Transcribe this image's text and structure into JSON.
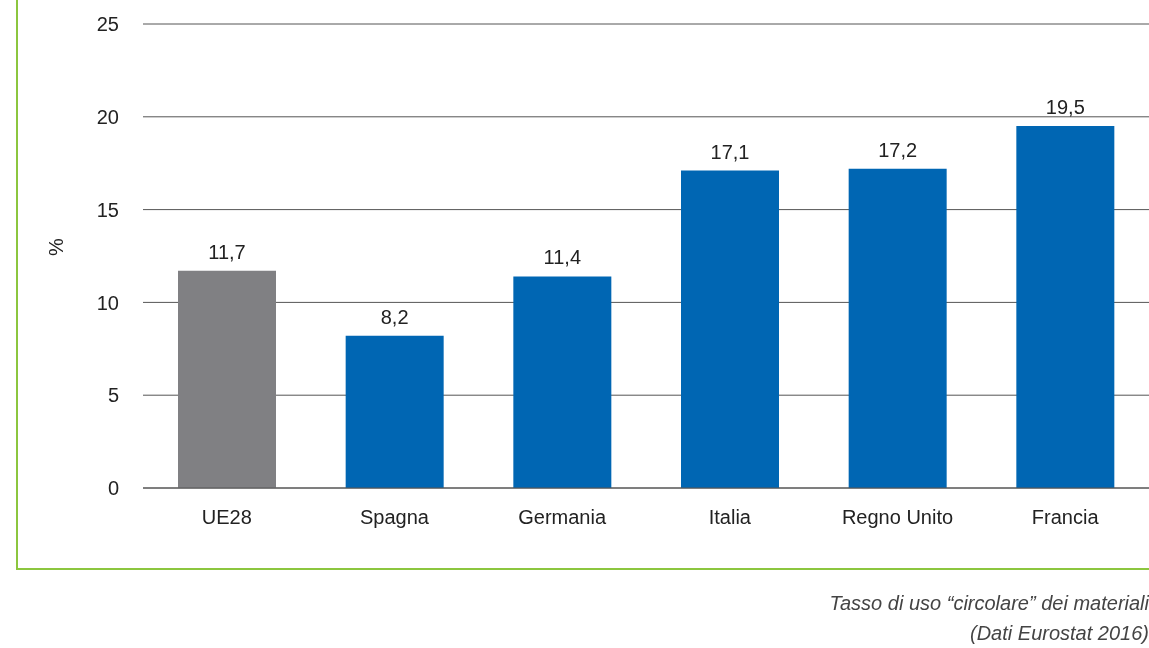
{
  "chart_data": {
    "type": "bar",
    "ylabel": "%",
    "categories": [
      "UE28",
      "Spagna",
      "Germania",
      "Italia",
      "Regno Unito",
      "Francia"
    ],
    "values": [
      11.7,
      8.2,
      11.4,
      17.1,
      17.2,
      19.5
    ],
    "colors": [
      "#808083",
      "#0066b3",
      "#0066b3",
      "#0066b3",
      "#0066b3",
      "#0066b3"
    ],
    "value_labels": [
      "11,7",
      "8,2",
      "11,4",
      "17,1",
      "17,2",
      "19,5"
    ],
    "ylim": [
      0,
      25
    ],
    "yticks": [
      0,
      5,
      10,
      15,
      20,
      25
    ],
    "grid": "y",
    "annotations": [
      "Tasso di uso “circolare” dei materiali (Dati Eurostat 2016)"
    ]
  }
}
